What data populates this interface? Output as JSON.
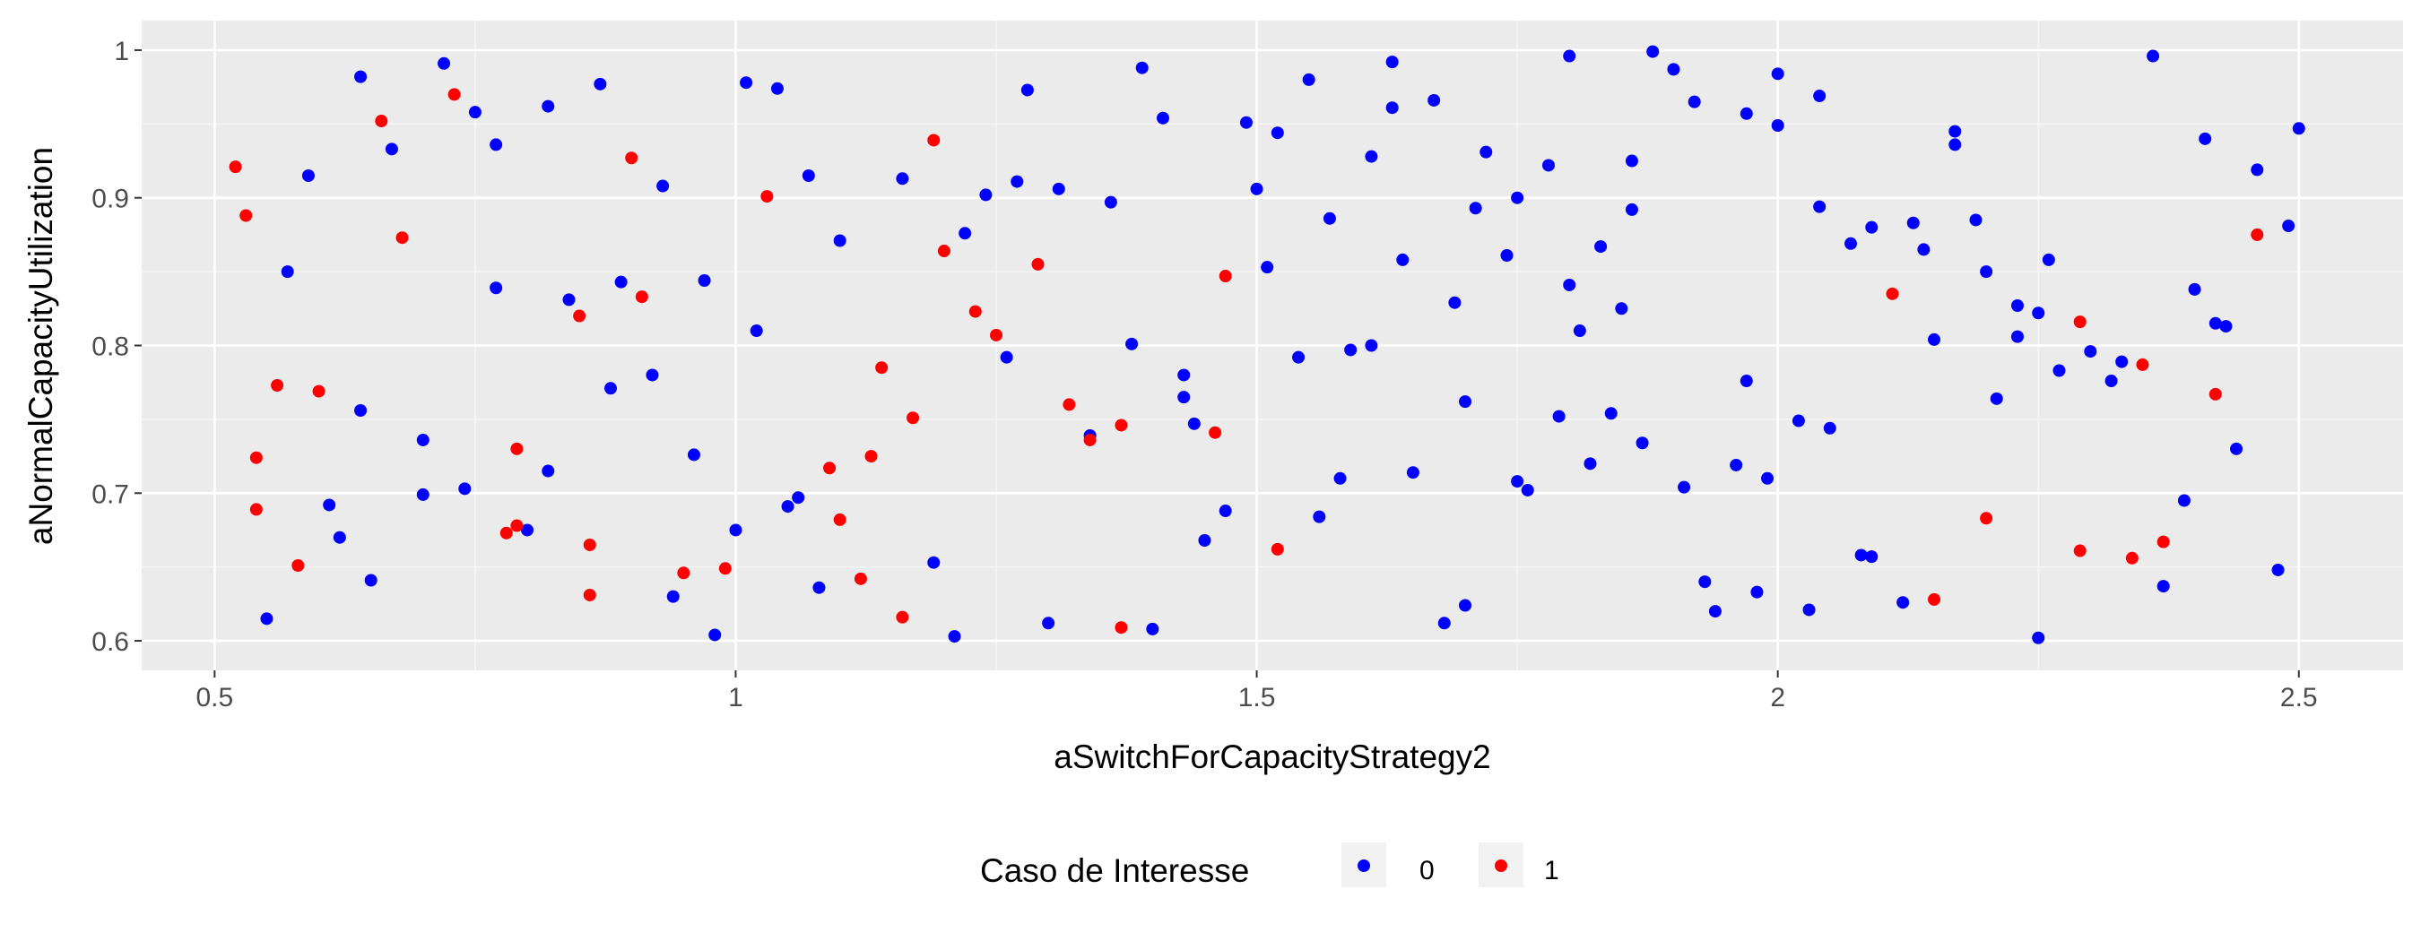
{
  "chart_data": {
    "type": "scatter",
    "title": "",
    "xlabel": "aSwitchForCapacityStrategy2",
    "ylabel": "aNormalCapacityUtilization",
    "xlim": [
      0.43,
      2.6
    ],
    "ylim": [
      0.58,
      1.02
    ],
    "xticks": [
      0.5,
      1,
      1.5,
      2,
      2.5
    ],
    "xtick_labels": [
      "0.5",
      "1",
      "1.5",
      "2",
      "2.5"
    ],
    "yticks": [
      0.6,
      0.7,
      0.8,
      0.9,
      1.0
    ],
    "ytick_labels": [
      "0.6",
      "0.7",
      "0.8",
      "0.9",
      "1"
    ],
    "grid": true,
    "legend": {
      "title": "Caso de Interesse",
      "position": "bottom",
      "entries": [
        {
          "label": "0",
          "color": "#0000ff"
        },
        {
          "label": "1",
          "color": "#ff0000"
        }
      ]
    },
    "series": [
      {
        "name": "0",
        "color": "#0000ff",
        "points": [
          [
            0.55,
            0.615
          ],
          [
            0.57,
            0.85
          ],
          [
            0.59,
            0.915
          ],
          [
            0.61,
            0.692
          ],
          [
            0.62,
            0.67
          ],
          [
            0.64,
            0.982
          ],
          [
            0.64,
            0.756
          ],
          [
            0.65,
            0.641
          ],
          [
            0.67,
            0.933
          ],
          [
            0.7,
            0.736
          ],
          [
            0.7,
            0.699
          ],
          [
            0.72,
            0.991
          ],
          [
            0.74,
            0.703
          ],
          [
            0.75,
            0.958
          ],
          [
            0.77,
            0.839
          ],
          [
            0.77,
            0.936
          ],
          [
            0.8,
            0.675
          ],
          [
            0.82,
            0.715
          ],
          [
            0.82,
            0.962
          ],
          [
            0.84,
            0.831
          ],
          [
            0.87,
            0.977
          ],
          [
            0.88,
            0.771
          ],
          [
            0.89,
            0.843
          ],
          [
            0.92,
            0.78
          ],
          [
            0.93,
            0.908
          ],
          [
            0.94,
            0.63
          ],
          [
            0.96,
            0.726
          ],
          [
            0.97,
            0.844
          ],
          [
            0.98,
            0.604
          ],
          [
            1.0,
            0.675
          ],
          [
            1.01,
            0.978
          ],
          [
            1.02,
            0.81
          ],
          [
            1.04,
            0.974
          ],
          [
            1.05,
            0.691
          ],
          [
            1.06,
            0.697
          ],
          [
            1.07,
            0.915
          ],
          [
            1.08,
            0.636
          ],
          [
            1.1,
            0.871
          ],
          [
            1.16,
            0.913
          ],
          [
            1.19,
            0.653
          ],
          [
            1.21,
            0.603
          ],
          [
            1.22,
            0.876
          ],
          [
            1.24,
            0.902
          ],
          [
            1.26,
            0.792
          ],
          [
            1.27,
            0.911
          ],
          [
            1.28,
            0.973
          ],
          [
            1.3,
            0.612
          ],
          [
            1.31,
            0.906
          ],
          [
            1.34,
            0.739
          ],
          [
            1.36,
            0.897
          ],
          [
            1.38,
            0.801
          ],
          [
            1.39,
            0.988
          ],
          [
            1.4,
            0.608
          ],
          [
            1.41,
            0.954
          ],
          [
            1.43,
            0.765
          ],
          [
            1.43,
            0.78
          ],
          [
            1.44,
            0.747
          ],
          [
            1.45,
            0.668
          ],
          [
            1.47,
            0.688
          ],
          [
            1.49,
            0.951
          ],
          [
            1.5,
            0.906
          ],
          [
            1.51,
            0.853
          ],
          [
            1.52,
            0.944
          ],
          [
            1.54,
            0.792
          ],
          [
            1.55,
            0.98
          ],
          [
            1.56,
            0.684
          ],
          [
            1.57,
            0.886
          ],
          [
            1.58,
            0.71
          ],
          [
            1.59,
            0.797
          ],
          [
            1.61,
            0.928
          ],
          [
            1.61,
            0.8
          ],
          [
            1.63,
            0.992
          ],
          [
            1.63,
            0.961
          ],
          [
            1.64,
            0.858
          ],
          [
            1.65,
            0.714
          ],
          [
            1.67,
            0.966
          ],
          [
            1.68,
            0.612
          ],
          [
            1.69,
            0.829
          ],
          [
            1.7,
            0.762
          ],
          [
            1.7,
            0.624
          ],
          [
            1.71,
            0.893
          ],
          [
            1.72,
            0.931
          ],
          [
            1.74,
            0.861
          ],
          [
            1.75,
            0.9
          ],
          [
            1.75,
            0.708
          ],
          [
            1.76,
            0.702
          ],
          [
            1.78,
            0.922
          ],
          [
            1.79,
            0.752
          ],
          [
            1.8,
            0.841
          ],
          [
            1.8,
            0.996
          ],
          [
            1.81,
            0.81
          ],
          [
            1.82,
            0.72
          ],
          [
            1.83,
            0.867
          ],
          [
            1.84,
            0.754
          ],
          [
            1.85,
            0.825
          ],
          [
            1.86,
            0.892
          ],
          [
            1.86,
            0.925
          ],
          [
            1.87,
            0.734
          ],
          [
            1.88,
            0.999
          ],
          [
            1.9,
            0.987
          ],
          [
            1.91,
            0.704
          ],
          [
            1.92,
            0.965
          ],
          [
            1.93,
            0.64
          ],
          [
            1.94,
            0.62
          ],
          [
            1.96,
            0.719
          ],
          [
            1.97,
            0.776
          ],
          [
            1.97,
            0.957
          ],
          [
            1.98,
            0.633
          ],
          [
            1.99,
            0.71
          ],
          [
            2.0,
            0.949
          ],
          [
            2.0,
            0.984
          ],
          [
            2.02,
            0.749
          ],
          [
            2.03,
            0.621
          ],
          [
            2.04,
            0.894
          ],
          [
            2.04,
            0.969
          ],
          [
            2.05,
            0.744
          ],
          [
            2.07,
            0.869
          ],
          [
            2.08,
            0.658
          ],
          [
            2.09,
            0.88
          ],
          [
            2.09,
            0.657
          ],
          [
            2.12,
            0.626
          ],
          [
            2.13,
            0.883
          ],
          [
            2.14,
            0.865
          ],
          [
            2.15,
            0.804
          ],
          [
            2.17,
            0.936
          ],
          [
            2.17,
            0.945
          ],
          [
            2.19,
            0.885
          ],
          [
            2.2,
            0.85
          ],
          [
            2.21,
            0.764
          ],
          [
            2.23,
            0.827
          ],
          [
            2.23,
            0.806
          ],
          [
            2.25,
            0.822
          ],
          [
            2.25,
            0.602
          ],
          [
            2.26,
            0.858
          ],
          [
            2.27,
            0.783
          ],
          [
            2.3,
            0.796
          ],
          [
            2.32,
            0.776
          ],
          [
            2.33,
            0.789
          ],
          [
            2.36,
            0.996
          ],
          [
            2.37,
            0.637
          ],
          [
            2.39,
            0.695
          ],
          [
            2.4,
            0.838
          ],
          [
            2.41,
            0.94
          ],
          [
            2.42,
            0.815
          ],
          [
            2.43,
            0.813
          ],
          [
            2.44,
            0.73
          ],
          [
            2.46,
            0.919
          ],
          [
            2.48,
            0.648
          ],
          [
            2.49,
            0.881
          ],
          [
            2.5,
            0.947
          ]
        ]
      },
      {
        "name": "1",
        "color": "#ff0000",
        "points": [
          [
            0.52,
            0.921
          ],
          [
            0.53,
            0.888
          ],
          [
            0.54,
            0.724
          ],
          [
            0.54,
            0.689
          ],
          [
            0.56,
            0.773
          ],
          [
            0.58,
            0.651
          ],
          [
            0.6,
            0.769
          ],
          [
            0.66,
            0.952
          ],
          [
            0.68,
            0.873
          ],
          [
            0.73,
            0.97
          ],
          [
            0.78,
            0.673
          ],
          [
            0.79,
            0.678
          ],
          [
            0.79,
            0.73
          ],
          [
            0.85,
            0.82
          ],
          [
            0.86,
            0.631
          ],
          [
            0.86,
            0.665
          ],
          [
            0.9,
            0.927
          ],
          [
            0.91,
            0.833
          ],
          [
            0.95,
            0.646
          ],
          [
            0.99,
            0.649
          ],
          [
            1.03,
            0.901
          ],
          [
            1.09,
            0.717
          ],
          [
            1.1,
            0.682
          ],
          [
            1.12,
            0.642
          ],
          [
            1.13,
            0.725
          ],
          [
            1.14,
            0.785
          ],
          [
            1.16,
            0.616
          ],
          [
            1.17,
            0.751
          ],
          [
            1.19,
            0.939
          ],
          [
            1.2,
            0.864
          ],
          [
            1.23,
            0.823
          ],
          [
            1.25,
            0.807
          ],
          [
            1.29,
            0.855
          ],
          [
            1.32,
            0.76
          ],
          [
            1.34,
            0.736
          ],
          [
            1.37,
            0.746
          ],
          [
            1.37,
            0.609
          ],
          [
            1.46,
            0.741
          ],
          [
            1.47,
            0.847
          ],
          [
            1.52,
            0.662
          ],
          [
            2.11,
            0.835
          ],
          [
            2.15,
            0.628
          ],
          [
            2.2,
            0.683
          ],
          [
            2.29,
            0.816
          ],
          [
            2.29,
            0.661
          ],
          [
            2.34,
            0.656
          ],
          [
            2.35,
            0.787
          ],
          [
            2.37,
            0.667
          ],
          [
            2.42,
            0.767
          ],
          [
            2.46,
            0.875
          ]
        ]
      }
    ]
  }
}
